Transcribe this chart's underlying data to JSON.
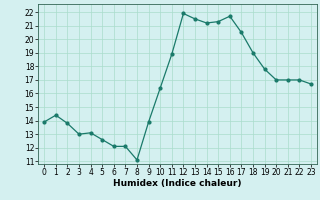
{
  "x": [
    0,
    1,
    2,
    3,
    4,
    5,
    6,
    7,
    8,
    9,
    10,
    11,
    12,
    13,
    14,
    15,
    16,
    17,
    18,
    19,
    20,
    21,
    22,
    23
  ],
  "y": [
    13.9,
    14.4,
    13.8,
    13.0,
    13.1,
    12.6,
    12.1,
    12.1,
    11.1,
    13.9,
    16.4,
    18.9,
    21.9,
    21.5,
    21.2,
    21.3,
    21.7,
    20.5,
    19.0,
    17.8,
    17.0,
    17.0,
    17.0,
    16.7
  ],
  "xlabel": "Humidex (Indice chaleur)",
  "xlim": [
    -0.5,
    23.5
  ],
  "ylim": [
    10.8,
    22.6
  ],
  "yticks": [
    11,
    12,
    13,
    14,
    15,
    16,
    17,
    18,
    19,
    20,
    21,
    22
  ],
  "xticks": [
    0,
    1,
    2,
    3,
    4,
    5,
    6,
    7,
    8,
    9,
    10,
    11,
    12,
    13,
    14,
    15,
    16,
    17,
    18,
    19,
    20,
    21,
    22,
    23
  ],
  "line_color": "#1a7a6a",
  "marker": "o",
  "marker_size": 2.0,
  "bg_color": "#d4f0f0",
  "grid_color": "#aaddcc",
  "label_fontsize": 6.5,
  "tick_fontsize": 5.5
}
